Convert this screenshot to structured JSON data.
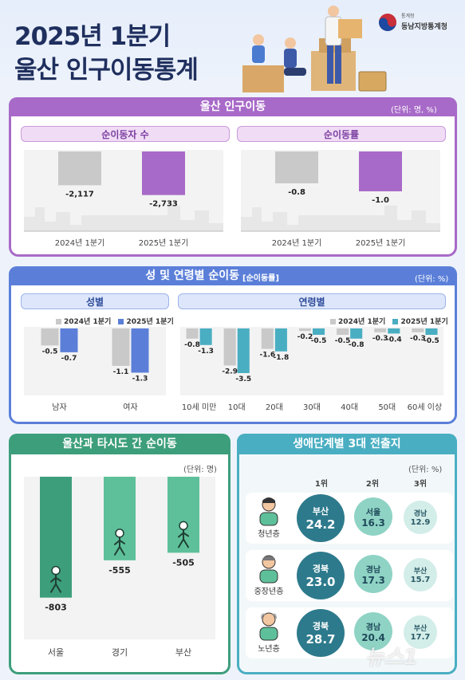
{
  "header": {
    "title_line1": "2025년 1분기",
    "title_line2": "울산 인구이동통계",
    "org_small": "통계청",
    "org_name": "동남지방통계청"
  },
  "section1": {
    "title": "울산 인구이동",
    "unit": "(단위: 명, %)",
    "left_title": "순이동자 수",
    "right_title": "순이동률"
  },
  "section2": {
    "title": "성 및 연령별 순이동",
    "title_sub": "[순이동률]",
    "unit": "(단위: %)",
    "left_title": "성별",
    "right_title": "연령별"
  },
  "section3": {
    "title": "울산과 타시도 간 순이동",
    "unit": "(단위: 명)"
  },
  "section4": {
    "title": "생애단계별 3대 전출지",
    "unit": "(단위: %)",
    "rank_labels": [
      "1위",
      "2위",
      "3위"
    ],
    "rows": [
      {
        "group": "청년층",
        "items": [
          {
            "name": "부산",
            "value": "24.2"
          },
          {
            "name": "서울",
            "value": "16.3"
          },
          {
            "name": "경남",
            "value": "12.9"
          }
        ]
      },
      {
        "group": "중장년층",
        "items": [
          {
            "name": "경북",
            "value": "23.0"
          },
          {
            "name": "경남",
            "value": "17.3"
          },
          {
            "name": "부산",
            "value": "15.7"
          }
        ]
      },
      {
        "group": "노년층",
        "items": [
          {
            "name": "경북",
            "value": "28.7"
          },
          {
            "name": "경남",
            "value": "20.4"
          },
          {
            "name": "부산",
            "value": "17.7"
          }
        ]
      }
    ]
  },
  "watermark": "뉴스1",
  "colors": {
    "purple": "#a86ac8",
    "blue": "#5b7fd9",
    "teal": "#4aaec2",
    "green": "#3d9e7c",
    "gray": "#c9c9c9",
    "navy": "#1f2f5e",
    "mint": "#5ec09a",
    "deepteal": "#2d7a8c"
  },
  "chart_data": [
    {
      "type": "bar",
      "title": "순이동자 수",
      "categories": [
        "2024년 1분기",
        "2025년 1분기"
      ],
      "values": [
        -2117,
        -2733
      ],
      "value_labels": [
        "-2,117",
        "-2,733"
      ],
      "ylim": [
        -3000,
        0
      ]
    },
    {
      "type": "bar",
      "title": "순이동률",
      "categories": [
        "2024년 1분기",
        "2025년 1분기"
      ],
      "values": [
        -0.8,
        -1.0
      ],
      "value_labels": [
        "-0.8",
        "-1.0"
      ],
      "ylim": [
        -1.2,
        0
      ]
    },
    {
      "type": "bar",
      "title": "성별",
      "categories": [
        "남자",
        "여자"
      ],
      "series": [
        {
          "name": "2024년 1분기",
          "values": [
            -0.5,
            -1.1
          ]
        },
        {
          "name": "2025년 1분기",
          "values": [
            -0.7,
            -1.3
          ]
        }
      ],
      "ylim": [
        -1.5,
        0
      ]
    },
    {
      "type": "bar",
      "title": "연령별",
      "categories": [
        "10세 미만",
        "10대",
        "20대",
        "30대",
        "40대",
        "50대",
        "60세 이상"
      ],
      "series": [
        {
          "name": "2024년 1분기",
          "values": [
            -0.8,
            -2.9,
            -1.6,
            -0.2,
            -0.5,
            -0.3,
            -0.3
          ]
        },
        {
          "name": "2025년 1분기",
          "values": [
            -1.3,
            -3.5,
            -1.8,
            -0.5,
            -0.8,
            -0.4,
            -0.5
          ]
        }
      ],
      "ylim": [
        -4,
        0
      ]
    },
    {
      "type": "bar",
      "title": "울산과 타시도 간 순이동",
      "categories": [
        "서울",
        "경기",
        "부산"
      ],
      "values": [
        -803,
        -555,
        -505
      ],
      "ylim": [
        -900,
        0
      ]
    }
  ]
}
